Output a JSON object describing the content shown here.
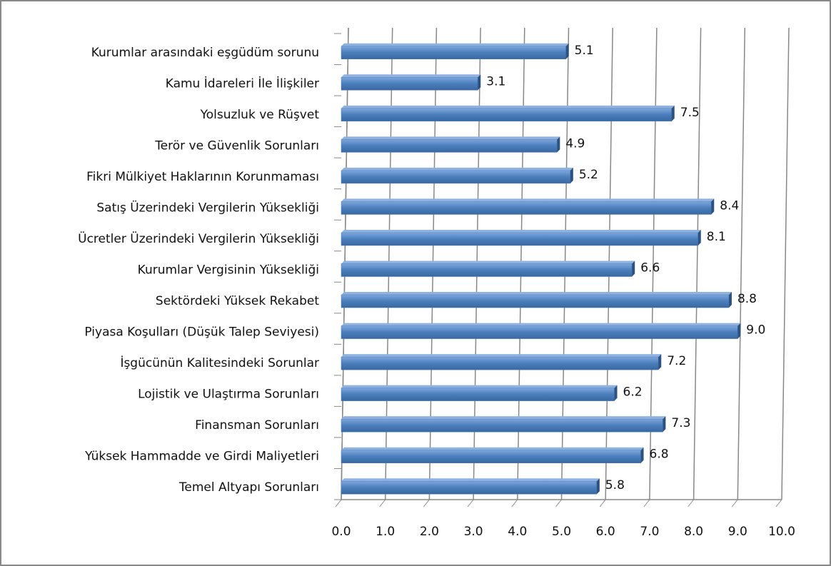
{
  "chart_data": {
    "type": "bar",
    "orientation": "horizontal",
    "color": "#4a7ebb",
    "categories": [
      "Kurumlar arasındaki eşgüdüm sorunu",
      "Kamu İdareleri İle İlişkiler",
      "Yolsuzluk ve Rüşvet",
      "Terör ve Güvenlik Sorunları",
      "Fikri Mülkiyet Haklarının Korunmaması",
      "Satış Üzerindeki Vergilerin Yüksekliği",
      "Ücretler Üzerindeki Vergilerin Yüksekliği",
      "Kurumlar Vergisinin Yüksekliği",
      "Sektördeki Yüksek Rekabet",
      "Piyasa Koşulları (Düşük Talep Seviyesi)",
      "İşgücünün Kalitesindeki Sorunlar",
      "Lojistik ve Ulaştırma Sorunları",
      "Finansman Sorunları",
      "Yüksek Hammadde ve Girdi Maliyetleri",
      "Temel Altyapı Sorunları"
    ],
    "values": [
      5.1,
      3.1,
      7.5,
      4.9,
      5.2,
      8.4,
      8.1,
      6.6,
      8.8,
      9.0,
      7.2,
      6.2,
      7.3,
      6.8,
      5.8
    ],
    "value_labels": [
      "5.1",
      "3.1",
      "7.5",
      "4.9",
      "5.2",
      "8.4",
      "8.1",
      "6.6",
      "8.8",
      "9.0",
      "7.2",
      "6.2",
      "7.3",
      "6.8",
      "5.8"
    ],
    "xlim": [
      0,
      10
    ],
    "xticks": [
      {
        "value": 0,
        "label": "0.0"
      },
      {
        "value": 1,
        "label": "1.0"
      },
      {
        "value": 2,
        "label": "2.0"
      },
      {
        "value": 3,
        "label": "3.0"
      },
      {
        "value": 4,
        "label": "4.0"
      },
      {
        "value": 5,
        "label": "5.0"
      },
      {
        "value": 6,
        "label": "6.0"
      },
      {
        "value": 7,
        "label": "7.0"
      },
      {
        "value": 8,
        "label": "8.0"
      },
      {
        "value": 9,
        "label": "9.0"
      },
      {
        "value": 10,
        "label": "10.0"
      }
    ],
    "grid": true
  }
}
